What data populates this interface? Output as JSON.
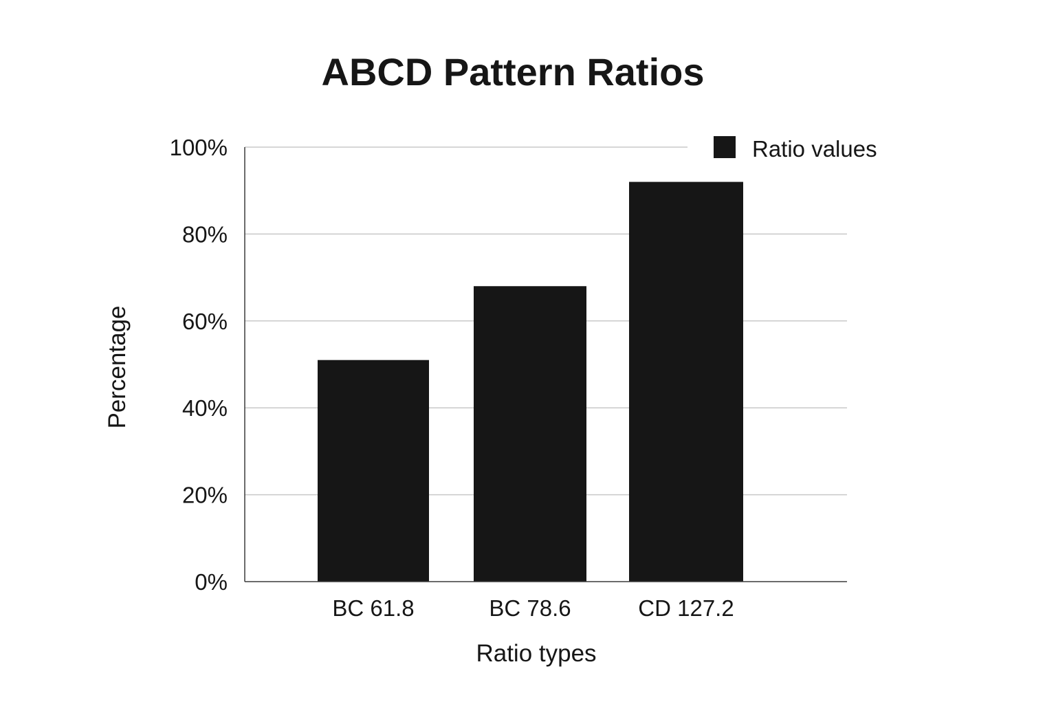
{
  "chart_data": {
    "type": "bar",
    "title": "ABCD Pattern Ratios",
    "xlabel": "Ratio types",
    "ylabel": "Percentage",
    "categories": [
      "BC 61.8",
      "BC 78.6",
      "CD 127.2"
    ],
    "series": [
      {
        "name": "Ratio values",
        "values": [
          51,
          68,
          92
        ]
      }
    ],
    "ylim": [
      0,
      100
    ],
    "yticks": [
      0,
      20,
      40,
      60,
      80,
      100
    ],
    "ytick_labels": [
      "0%",
      "20%",
      "40%",
      "60%",
      "80%",
      "100%"
    ],
    "grid": true,
    "legend_position": "top-right",
    "colors": {
      "bar": "#161616",
      "grid": "#c8c8c8",
      "axis": "#3a3a3a",
      "text": "#161616",
      "background": "#ffffff"
    }
  }
}
